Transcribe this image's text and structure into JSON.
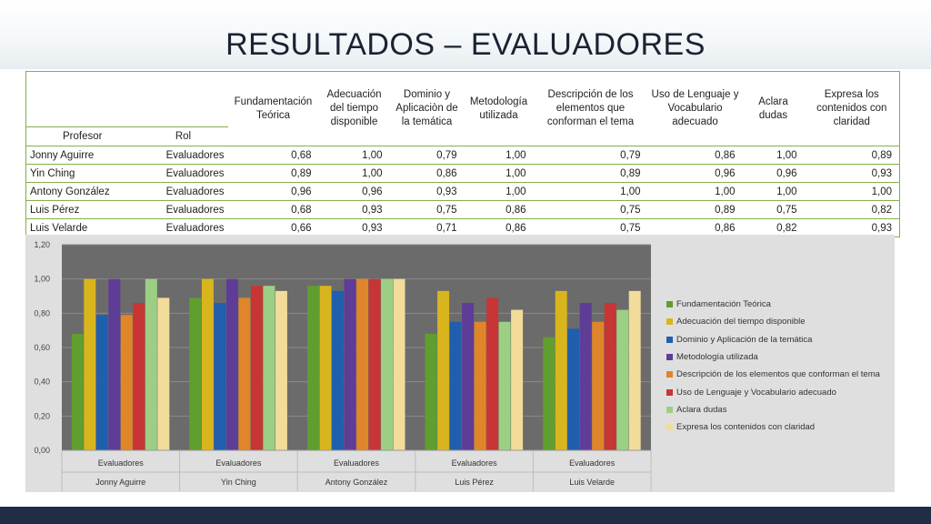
{
  "title": "RESULTADOS – EVALUADORES",
  "table": {
    "col_profesor": "Profesor",
    "col_rol": "Rol",
    "criteria": [
      "Fundamentación Teórica",
      "Adecuación del tiempo disponible",
      "Dominio y Aplicaciòn de la temática",
      "Metodología utilizada",
      "Descripción de los elementos que conforman el tema",
      "Uso de Lenguaje y Vocabulario adecuado",
      "Aclara dudas",
      "Expresa los contenidos con claridad"
    ],
    "rows": [
      {
        "profesor": "Jonny Aguirre",
        "rol": "Evaluadores",
        "values": [
          "0,68",
          "1,00",
          "0,79",
          "1,00",
          "0,79",
          "0,86",
          "1,00",
          "0,89"
        ]
      },
      {
        "profesor": "Yin Ching",
        "rol": "Evaluadores",
        "values": [
          "0,89",
          "1,00",
          "0,86",
          "1,00",
          "0,89",
          "0,96",
          "0,96",
          "0,93"
        ]
      },
      {
        "profesor": "Antony González",
        "rol": "Evaluadores",
        "values": [
          "0,96",
          "0,96",
          "0,93",
          "1,00",
          "1,00",
          "1,00",
          "1,00",
          "1,00"
        ]
      },
      {
        "profesor": "Luis Pérez",
        "rol": "Evaluadores",
        "values": [
          "0,68",
          "0,93",
          "0,75",
          "0,86",
          "0,75",
          "0,89",
          "0,75",
          "0,82"
        ]
      },
      {
        "profesor": "Luis Velarde",
        "rol": "Evaluadores",
        "values": [
          "0,66",
          "0,93",
          "0,71",
          "0,86",
          "0,75",
          "0,86",
          "0,82",
          "0,93"
        ]
      }
    ]
  },
  "chart_data": {
    "type": "bar",
    "categories": [
      "Jonny Aguirre",
      "Yin Ching",
      "Antony González",
      "Luis Pérez",
      "Luis Velarde"
    ],
    "category_group_label": "Evaluadores",
    "ylim": [
      0,
      1.2
    ],
    "yticks": [
      "0,00",
      "0,20",
      "0,40",
      "0,60",
      "0,80",
      "1,00",
      "1,20"
    ],
    "grid": true,
    "legend_position": "right",
    "series": [
      {
        "name": "Fundamentación Teórica",
        "color": "#5f9e2f",
        "values": [
          0.68,
          0.89,
          0.96,
          0.68,
          0.66
        ]
      },
      {
        "name": "Adecuación del tiempo disponible",
        "color": "#d9b51d",
        "values": [
          1.0,
          1.0,
          0.96,
          0.93,
          0.93
        ]
      },
      {
        "name": "Dominio y Aplicación de la temática",
        "color": "#1f5fae",
        "values": [
          0.79,
          0.86,
          0.93,
          0.75,
          0.71
        ]
      },
      {
        "name": "Metodología utilizada",
        "color": "#5e3d97",
        "values": [
          1.0,
          1.0,
          1.0,
          0.86,
          0.86
        ]
      },
      {
        "name": "Descripción de los elementos que conforman el tema",
        "color": "#e0862a",
        "values": [
          0.79,
          0.89,
          1.0,
          0.75,
          0.75
        ]
      },
      {
        "name": "Uso de Lenguaje y Vocabulario adecuado",
        "color": "#c83535",
        "values": [
          0.86,
          0.96,
          1.0,
          0.89,
          0.86
        ]
      },
      {
        "name": "Aclara dudas",
        "color": "#9ccf84",
        "values": [
          1.0,
          0.96,
          1.0,
          0.75,
          0.82
        ]
      },
      {
        "name": "Expresa los contenidos con claridad",
        "color": "#f2dc9a",
        "values": [
          0.89,
          0.93,
          1.0,
          0.82,
          0.93
        ]
      }
    ]
  }
}
